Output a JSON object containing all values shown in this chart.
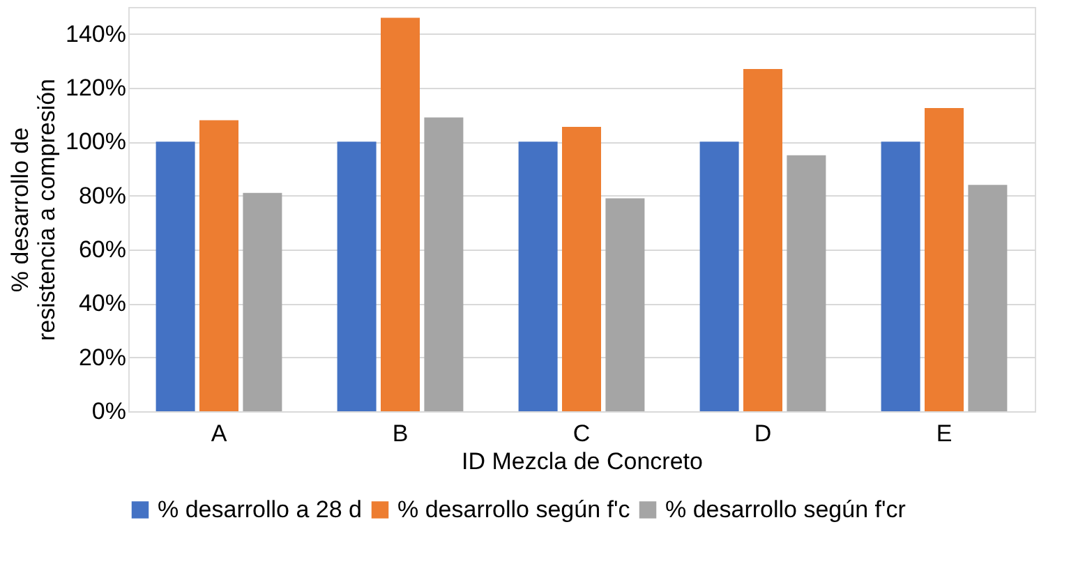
{
  "chart_data": {
    "type": "bar",
    "xlabel": "ID Mezcla de Concreto",
    "ylabel": "% desarrollo de resistencia a compresión",
    "categories": [
      "A",
      "B",
      "C",
      "D",
      "E"
    ],
    "series": [
      {
        "name": "% desarrollo a 28 d",
        "color": "#4472c4",
        "values": [
          100,
          100,
          100,
          100,
          100
        ]
      },
      {
        "name": "% desarrollo según f'c",
        "color": "#ed7d31",
        "values": [
          108,
          146,
          105.5,
          127,
          112.5
        ]
      },
      {
        "name": "% desarrollo según f'cr",
        "color": "#a5a5a5",
        "values": [
          81,
          109,
          79,
          95,
          84
        ]
      }
    ],
    "ylim": [
      0,
      150
    ],
    "yticks": [
      {
        "value": 0,
        "label": "0%"
      },
      {
        "value": 20,
        "label": "20%"
      },
      {
        "value": 40,
        "label": "40%"
      },
      {
        "value": 60,
        "label": "60%"
      },
      {
        "value": 80,
        "label": "80%"
      },
      {
        "value": 100,
        "label": "100%"
      },
      {
        "value": 120,
        "label": "120%"
      },
      {
        "value": 140,
        "label": "140%"
      }
    ],
    "grid": "y",
    "legend": "bottom"
  }
}
